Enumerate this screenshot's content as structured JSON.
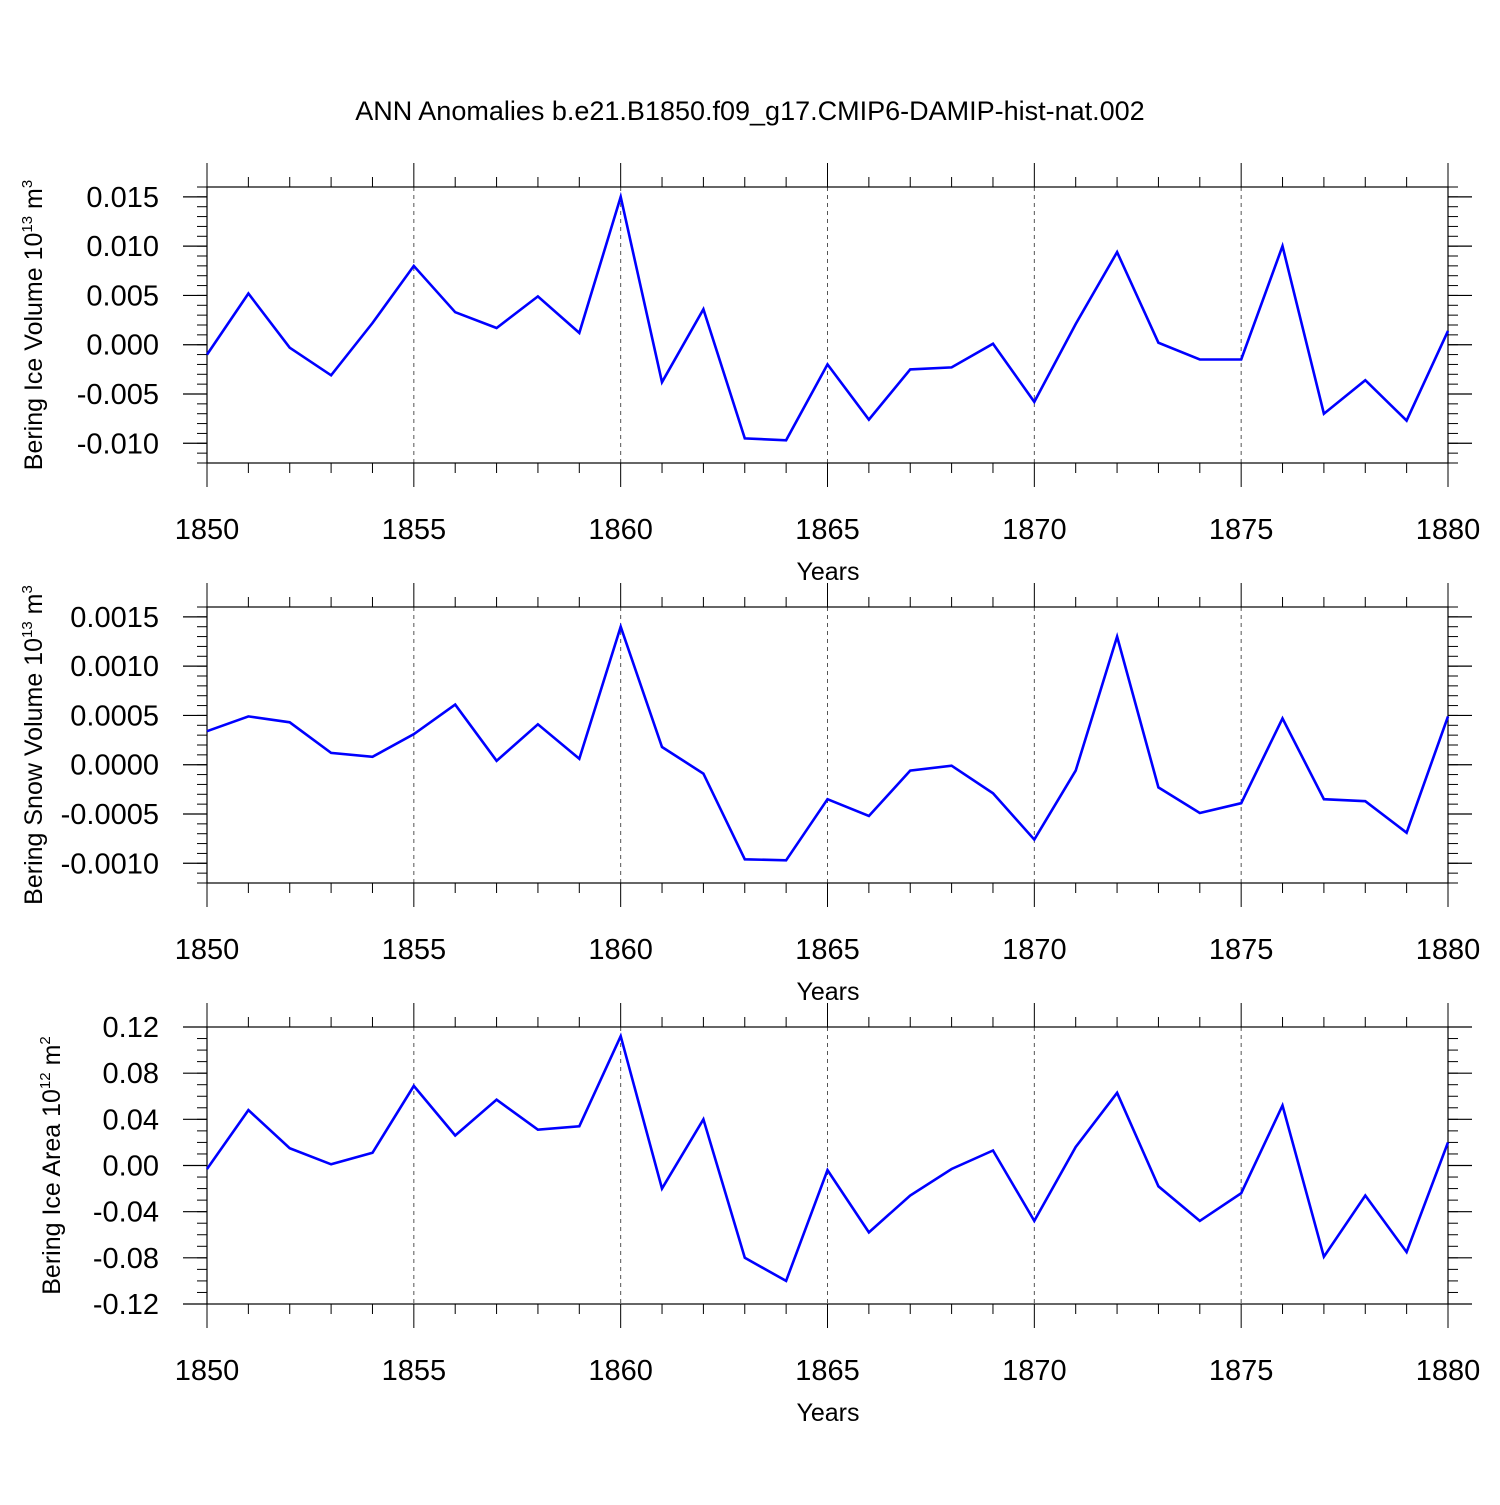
{
  "title": "ANN Anomalies b.e21.B1850.f09_g17.CMIP6-DAMIP-hist-nat.002",
  "colors": {
    "line": "#0000ff",
    "axis": "#000000",
    "grid": "#555555"
  },
  "chart_data": [
    {
      "type": "line",
      "ylabel_main": "Bering Ice Volume 10",
      "ylabel_exp": "13",
      "ylabel_unit": "m",
      "ylabel_unit_exp": "3",
      "xlabel": "Years",
      "xlim": [
        1850,
        1880
      ],
      "ylim": [
        -0.012,
        0.016
      ],
      "yticks": [
        -0.01,
        -0.005,
        0.0,
        0.005,
        0.01,
        0.015
      ],
      "ytick_labels": [
        "-0.010",
        "-0.005",
        "0.000",
        "0.005",
        "0.010",
        "0.015"
      ],
      "yminor_step": 0.001,
      "xticks": [
        1850,
        1855,
        1860,
        1865,
        1870,
        1875,
        1880
      ],
      "xtick_labels": [
        "1850",
        "1855",
        "1860",
        "1865",
        "1870",
        "1875",
        "1880"
      ],
      "x": [
        1850,
        1851,
        1852,
        1853,
        1854,
        1855,
        1856,
        1857,
        1858,
        1859,
        1860,
        1861,
        1862,
        1863,
        1864,
        1865,
        1866,
        1867,
        1868,
        1869,
        1870,
        1871,
        1872,
        1873,
        1874,
        1875,
        1876,
        1877,
        1878,
        1879,
        1880
      ],
      "series": [
        {
          "name": "Bering Ice Volume",
          "values": [
            -0.001,
            0.0052,
            -0.0003,
            -0.0031,
            0.0022,
            0.008,
            0.0033,
            0.0017,
            0.0049,
            0.0012,
            0.015,
            -0.0038,
            0.0036,
            -0.0095,
            -0.0097,
            -0.002,
            -0.0076,
            -0.0025,
            -0.0023,
            0.0001,
            -0.0058,
            0.0021,
            0.0094,
            0.0002,
            -0.0015,
            -0.0015,
            0.01,
            -0.007,
            -0.0036,
            -0.0077,
            0.0014
          ]
        }
      ]
    },
    {
      "type": "line",
      "ylabel_main": "Bering Snow Volume 10",
      "ylabel_exp": "13",
      "ylabel_unit": "m",
      "ylabel_unit_exp": "3",
      "xlabel": "Years",
      "xlim": [
        1850,
        1880
      ],
      "ylim": [
        -0.0012,
        0.0016
      ],
      "yticks": [
        -0.001,
        -0.0005,
        0.0,
        0.0005,
        0.001,
        0.0015
      ],
      "ytick_labels": [
        "-0.0010",
        "-0.0005",
        "0.0000",
        "0.0005",
        "0.0010",
        "0.0015"
      ],
      "yminor_step": 0.0001,
      "xticks": [
        1850,
        1855,
        1860,
        1865,
        1870,
        1875,
        1880
      ],
      "xtick_labels": [
        "1850",
        "1855",
        "1860",
        "1865",
        "1870",
        "1875",
        "1880"
      ],
      "x": [
        1850,
        1851,
        1852,
        1853,
        1854,
        1855,
        1856,
        1857,
        1858,
        1859,
        1860,
        1861,
        1862,
        1863,
        1864,
        1865,
        1866,
        1867,
        1868,
        1869,
        1870,
        1871,
        1872,
        1873,
        1874,
        1875,
        1876,
        1877,
        1878,
        1879,
        1880
      ],
      "series": [
        {
          "name": "Bering Snow Volume",
          "values": [
            0.00034,
            0.00049,
            0.00043,
            0.00012,
            8e-05,
            0.00031,
            0.00061,
            4e-05,
            0.00041,
            6e-05,
            0.0014,
            0.00018,
            -9e-05,
            -0.00096,
            -0.00097,
            -0.00035,
            -0.00052,
            -6e-05,
            -1e-05,
            -0.00029,
            -0.00076,
            -6e-05,
            0.0013,
            -0.00023,
            -0.00049,
            -0.00039,
            0.00047,
            -0.00035,
            -0.00037,
            -0.00069,
            0.00049
          ]
        }
      ]
    },
    {
      "type": "line",
      "ylabel_main": "Bering Ice Area 10",
      "ylabel_exp": "12",
      "ylabel_unit": "m",
      "ylabel_unit_exp": "2",
      "xlabel": "Years",
      "xlim": [
        1850,
        1880
      ],
      "ylim": [
        -0.12,
        0.12
      ],
      "yticks": [
        -0.12,
        -0.08,
        -0.04,
        0.0,
        0.04,
        0.08,
        0.12
      ],
      "ytick_labels": [
        "-0.12",
        "-0.08",
        "-0.04",
        "0.00",
        "0.04",
        "0.08",
        "0.12"
      ],
      "yminor_step": 0.01,
      "xticks": [
        1850,
        1855,
        1860,
        1865,
        1870,
        1875,
        1880
      ],
      "xtick_labels": [
        "1850",
        "1855",
        "1860",
        "1865",
        "1870",
        "1875",
        "1880"
      ],
      "x": [
        1850,
        1851,
        1852,
        1853,
        1854,
        1855,
        1856,
        1857,
        1858,
        1859,
        1860,
        1861,
        1862,
        1863,
        1864,
        1865,
        1866,
        1867,
        1868,
        1869,
        1870,
        1871,
        1872,
        1873,
        1874,
        1875,
        1876,
        1877,
        1878,
        1879,
        1880
      ],
      "series": [
        {
          "name": "Bering Ice Area",
          "values": [
            -0.003,
            0.048,
            0.015,
            0.001,
            0.011,
            0.069,
            0.026,
            0.057,
            0.031,
            0.034,
            0.112,
            -0.02,
            0.04,
            -0.08,
            -0.1,
            -0.004,
            -0.058,
            -0.026,
            -0.003,
            0.013,
            -0.048,
            0.016,
            0.063,
            -0.018,
            -0.048,
            -0.024,
            0.052,
            -0.079,
            -0.026,
            -0.075,
            0.02
          ]
        }
      ]
    }
  ]
}
